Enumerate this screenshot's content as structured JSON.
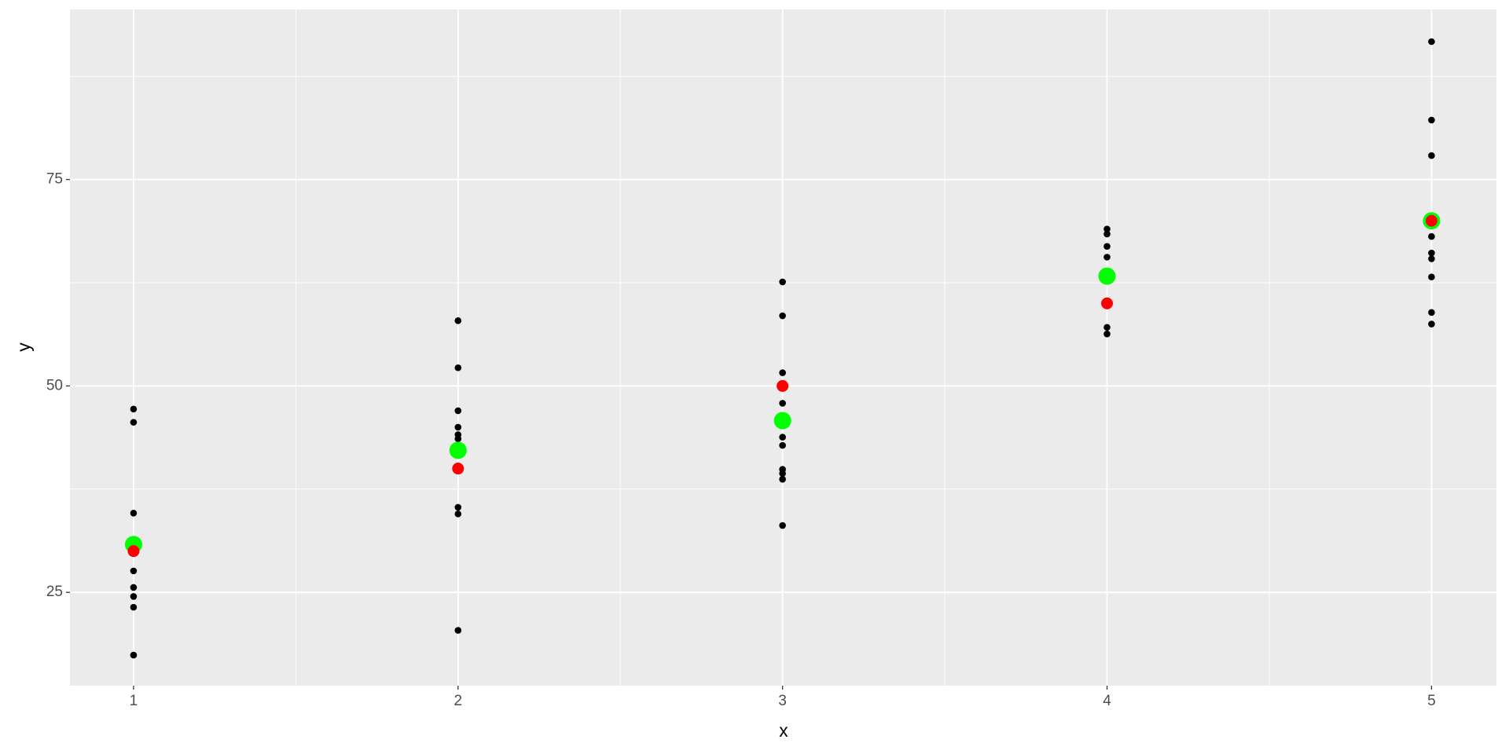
{
  "chart_data": {
    "type": "scatter",
    "xlabel": "x",
    "ylabel": "y",
    "xlim": [
      0.804,
      5.2
    ],
    "ylim": [
      13.7,
      95.6
    ],
    "xticks": [
      1,
      2,
      3,
      4,
      5
    ],
    "yticks": [
      25,
      50,
      75
    ],
    "xminor": [
      1.5,
      2.5,
      3.5,
      4.5
    ],
    "yminor": [
      37.5,
      62.5,
      87.5
    ],
    "grid": true,
    "series": [
      {
        "color": "#000000",
        "x": [
          1,
          1,
          1,
          1,
          1,
          1,
          1,
          1,
          2,
          2,
          2,
          2,
          2,
          2,
          2,
          2,
          2,
          3,
          3,
          3,
          3,
          3,
          3,
          3,
          3,
          3,
          3,
          4,
          4,
          4,
          4,
          4,
          4,
          4,
          5,
          5,
          5,
          5,
          5,
          5,
          5,
          5,
          5
        ],
        "y": [
          47.2,
          45.6,
          34.6,
          27.6,
          25.6,
          24.5,
          23.2,
          17.4,
          57.9,
          52.2,
          47.0,
          45.0,
          44.1,
          43.6,
          35.3,
          34.5,
          20.4,
          62.6,
          58.5,
          51.6,
          47.9,
          43.8,
          42.8,
          39.9,
          39.4,
          38.7,
          33.1,
          69.0,
          68.4,
          66.9,
          65.6,
          59.7,
          57.1,
          56.3,
          91.7,
          82.2,
          77.9,
          68.1,
          66.1,
          65.4,
          63.2,
          58.9,
          57.5
        ]
      },
      {
        "color": "#00ff00",
        "x": [
          1,
          2,
          3,
          4,
          5
        ],
        "y": [
          30.8,
          42.2,
          45.8,
          63.3,
          70.0
        ]
      },
      {
        "color": "#ff0000",
        "x": [
          1,
          2,
          3,
          4,
          5
        ],
        "y": [
          30,
          40,
          50,
          60,
          70
        ]
      }
    ]
  }
}
